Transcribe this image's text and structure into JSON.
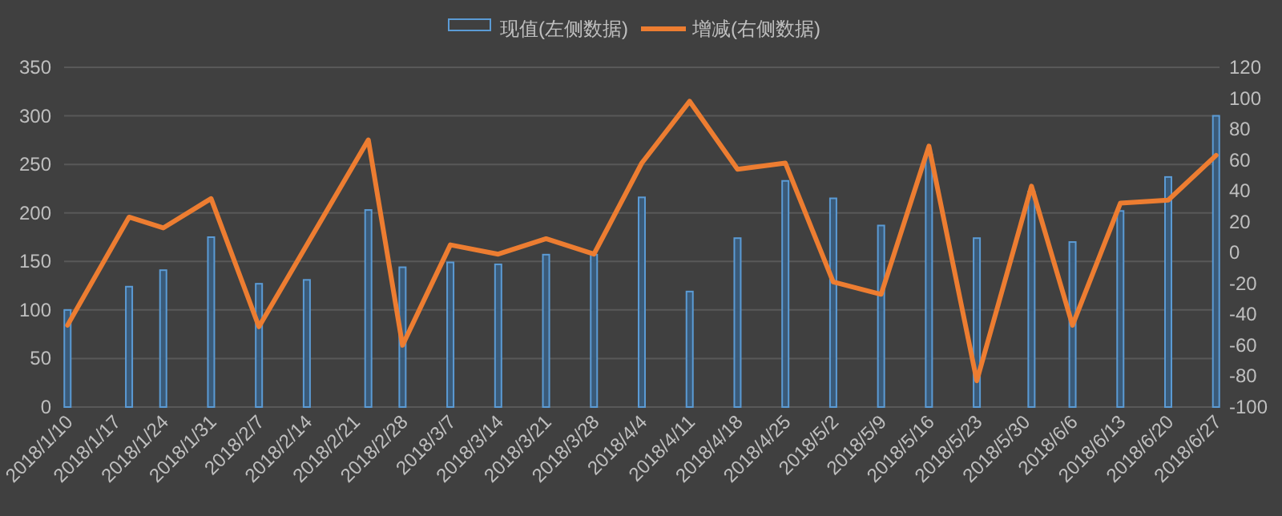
{
  "chart_data": {
    "type": "bar",
    "legend": "top",
    "grid": "y",
    "x": [
      "2018-01-10",
      "2018-01-19",
      "2018-01-24",
      "2018-01-31",
      "2018-02-07",
      "2018-02-14",
      "2018-02-23",
      "2018-02-28",
      "2018-03-07",
      "2018-03-14",
      "2018-03-21",
      "2018-03-28",
      "2018-04-04",
      "2018-04-11",
      "2018-04-18",
      "2018-04-25",
      "2018-05-02",
      "2018-05-09",
      "2018-05-16",
      "2018-05-23",
      "2018-05-31",
      "2018-06-06",
      "2018-06-13",
      "2018-06-20",
      "2018-06-27"
    ],
    "series": [
      {
        "name": "现值(左侧数据)",
        "color": "#5b9bd5",
        "values": [
          100,
          124,
          141,
          175,
          127,
          131,
          203,
          144,
          149,
          147,
          157,
          157,
          216,
          119,
          174,
          233,
          215,
          187,
          260,
          174,
          222,
          170,
          202,
          237,
          300
        ]
      },
      {
        "name": "增减(右侧数据)",
        "type": "line",
        "axis": "y2",
        "color": "#ed7d31",
        "values": [
          -47,
          23,
          16,
          35,
          -48,
          5,
          73,
          -60,
          5,
          -1,
          9,
          -1,
          58,
          98,
          54,
          58,
          -19,
          -27,
          69,
          -83,
          43,
          -47,
          32,
          34,
          63
        ]
      }
    ],
    "xlim": [
      "2018-01-09T12:00",
      "2018-06-27T12:00"
    ],
    "xticks": [
      {
        "value": "2018-01-10",
        "label": "2018/1/10"
      },
      {
        "value": "2018-01-17",
        "label": "2018/1/17"
      },
      {
        "value": "2018-01-24",
        "label": "2018/1/24"
      },
      {
        "value": "2018-01-31",
        "label": "2018/1/31"
      },
      {
        "value": "2018-02-07",
        "label": "2018/2/7"
      },
      {
        "value": "2018-02-14",
        "label": "2018/2/14"
      },
      {
        "value": "2018-02-21",
        "label": "2018/2/21"
      },
      {
        "value": "2018-02-28",
        "label": "2018/2/28"
      },
      {
        "value": "2018-03-07",
        "label": "2018/3/7"
      },
      {
        "value": "2018-03-14",
        "label": "2018/3/14"
      },
      {
        "value": "2018-03-21",
        "label": "2018/3/21"
      },
      {
        "value": "2018-03-28",
        "label": "2018/3/28"
      },
      {
        "value": "2018-04-04",
        "label": "2018/4/4"
      },
      {
        "value": "2018-04-11",
        "label": "2018/4/11"
      },
      {
        "value": "2018-04-18",
        "label": "2018/4/18"
      },
      {
        "value": "2018-04-25",
        "label": "2018/4/25"
      },
      {
        "value": "2018-05-02",
        "label": "2018/5/2"
      },
      {
        "value": "2018-05-09",
        "label": "2018/5/9"
      },
      {
        "value": "2018-05-16",
        "label": "2018/5/16"
      },
      {
        "value": "2018-05-23",
        "label": "2018/5/23"
      },
      {
        "value": "2018-05-30",
        "label": "2018/5/30"
      },
      {
        "value": "2018-06-06",
        "label": "2018/6/6"
      },
      {
        "value": "2018-06-13",
        "label": "2018/6/13"
      },
      {
        "value": "2018-06-20",
        "label": "2018/6/20"
      },
      {
        "value": "2018-06-27",
        "label": "2018/6/27"
      }
    ],
    "ylim": [
      0,
      350
    ],
    "yticks": [
      0,
      50,
      100,
      150,
      200,
      250,
      300,
      350
    ],
    "y2lim": [
      -100,
      120
    ],
    "y2ticks": [
      -100,
      -80,
      -60,
      -40,
      -20,
      0,
      20,
      40,
      60,
      80,
      100,
      120
    ]
  }
}
